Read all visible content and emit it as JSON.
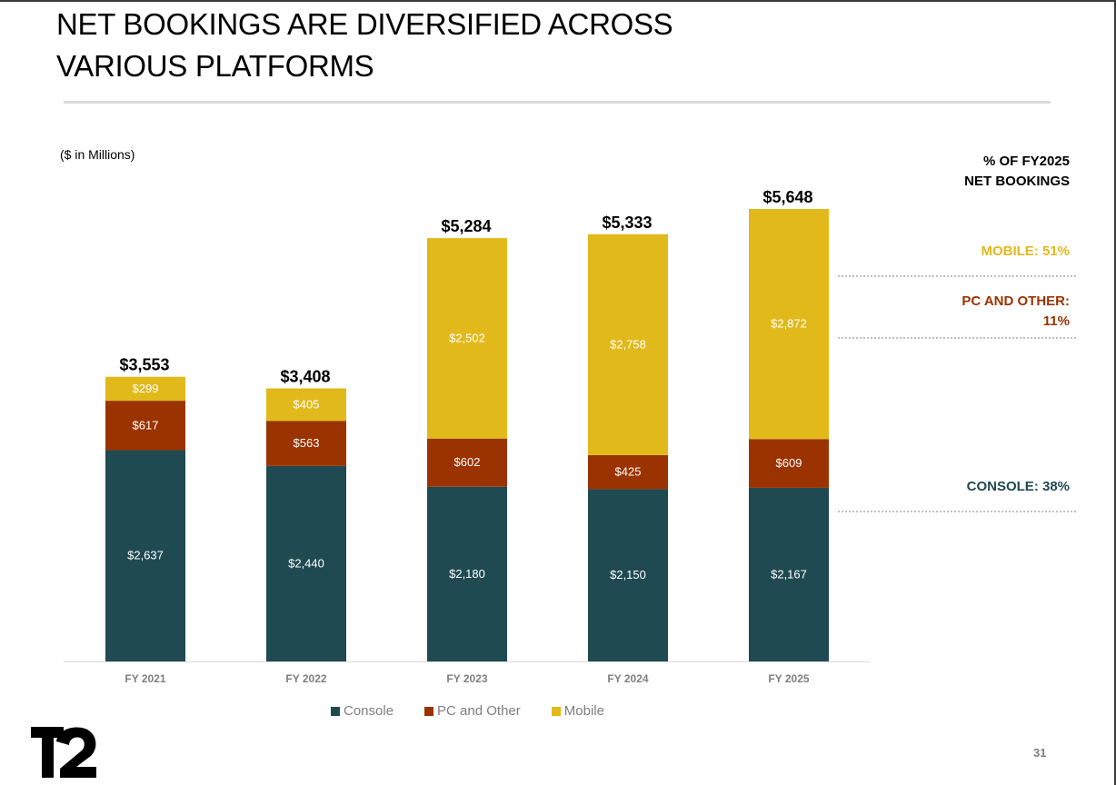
{
  "slide": {
    "title_line1": "NET BOOKINGS ARE DIVERSIFIED ACROSS",
    "title_line2": "VARIOUS PLATFORMS",
    "units": "($ in Millions)",
    "page_number": "31",
    "logo_text": "T2"
  },
  "side_panel": {
    "header_line1": "% OF FY2025",
    "header_line2": "NET BOOKINGS",
    "mobile": "MOBILE: 51%",
    "pc_line1": "PC AND OTHER:",
    "pc_line2": "11%",
    "console": "CONSOLE: 38%",
    "colors": {
      "mobile": "#E1B91B",
      "pc": "#9B3300",
      "console": "#1F4A52"
    }
  },
  "chart_data": {
    "type": "bar",
    "stacked": true,
    "title": "",
    "xlabel": "",
    "ylabel": "$ in Millions",
    "categories": [
      "FY 2021",
      "FY 2022",
      "FY 2023",
      "FY 2024",
      "FY 2025"
    ],
    "series": [
      {
        "name": "Console",
        "color": "#1F4A52",
        "values": [
          2637,
          2440,
          2180,
          2150,
          2167
        ],
        "labels": [
          "$2,637",
          "$2,440",
          "$2,180",
          "$2,150",
          "$2,167"
        ]
      },
      {
        "name": "PC and Other",
        "color": "#9B3300",
        "values": [
          617,
          563,
          602,
          425,
          609
        ],
        "labels": [
          "$617",
          "$563",
          "$602",
          "$425",
          "$609"
        ]
      },
      {
        "name": "Mobile",
        "color": "#E1B91B",
        "values": [
          299,
          405,
          2502,
          2758,
          2872
        ],
        "labels": [
          "$299",
          "$405",
          "$2,502",
          "$2,758",
          "$2,872"
        ]
      }
    ],
    "totals": [
      3553,
      3408,
      5284,
      5333,
      5648
    ],
    "total_labels": [
      "$3,553",
      "$3,408",
      "$5,284",
      "$5,333",
      "$5,648"
    ],
    "ylim": [
      0,
      5648
    ],
    "grid": false,
    "legend": "bottom"
  }
}
